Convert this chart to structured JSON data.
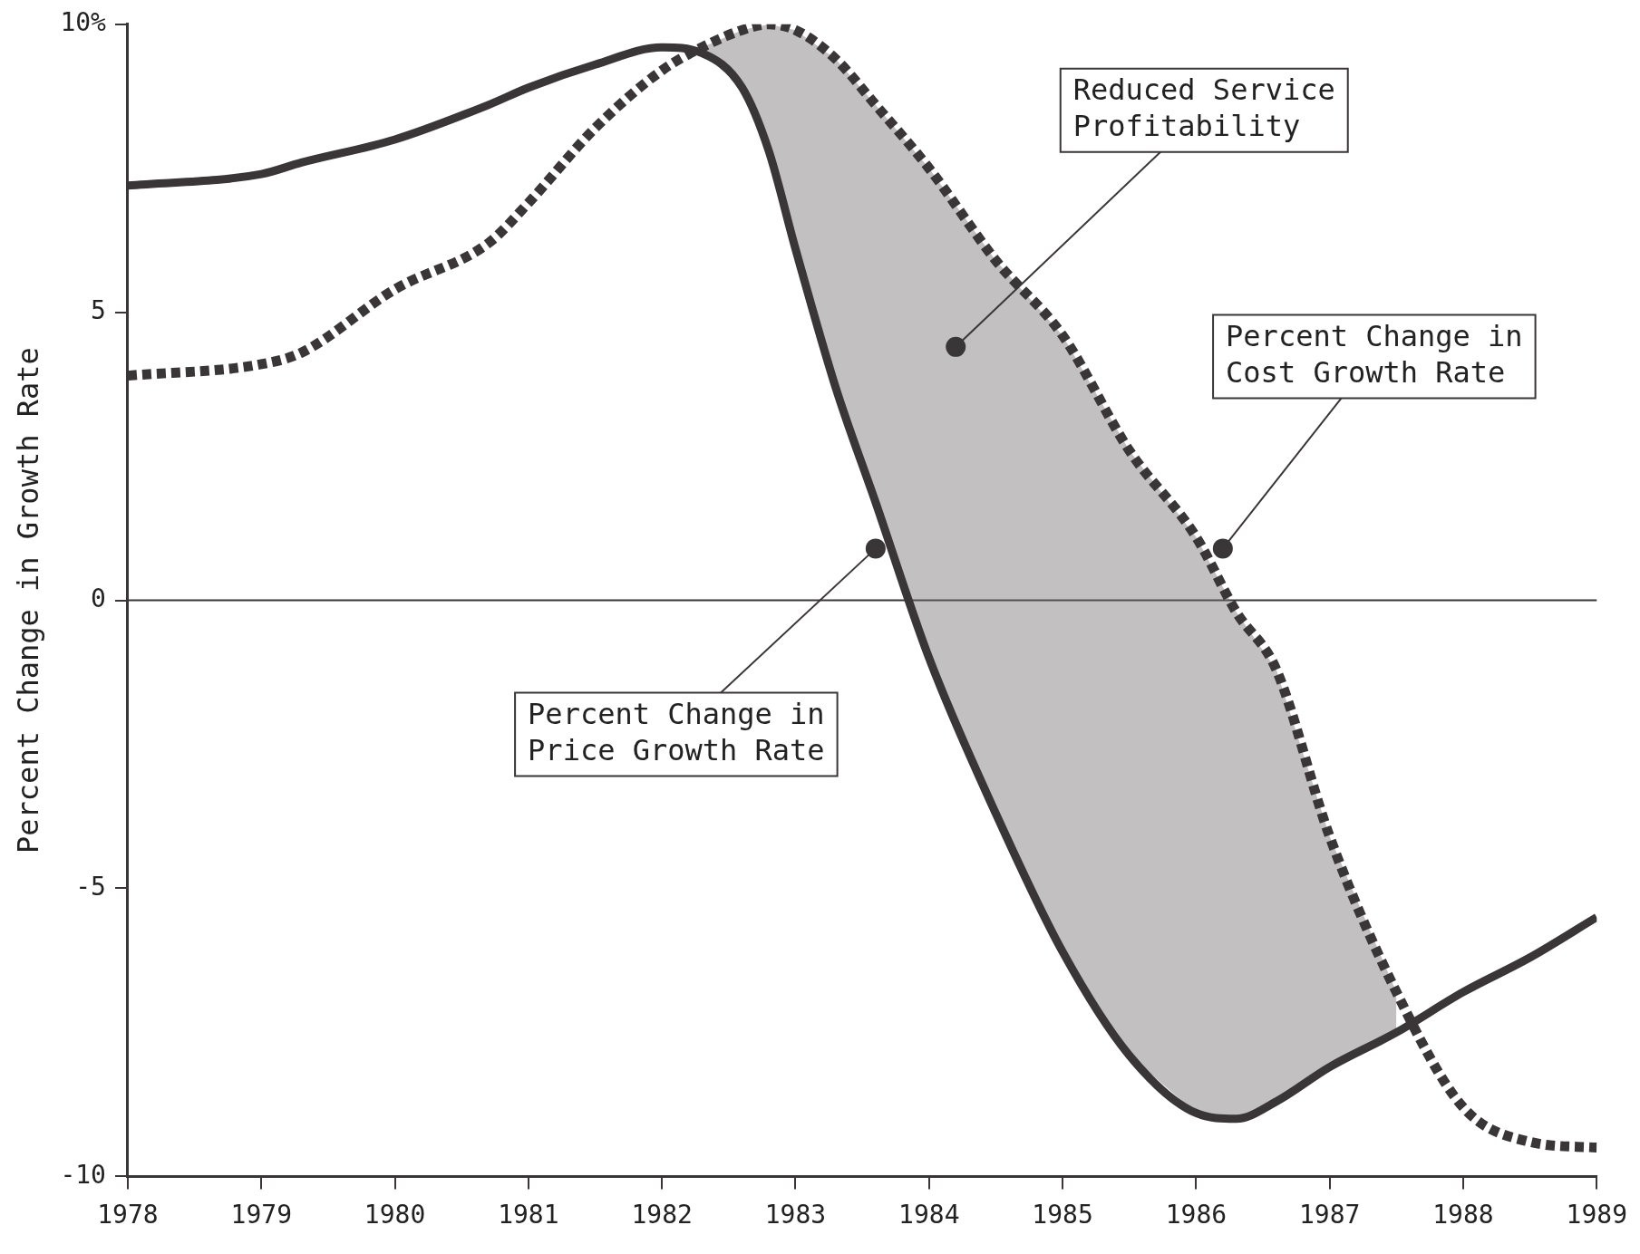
{
  "chart_data": {
    "type": "line",
    "ylabel": "Percent Change in Growth Rate",
    "x": [
      1978,
      1979,
      1979.3,
      1980,
      1980.7,
      1981,
      1981.5,
      1982,
      1982.3,
      1982.6,
      1982.8,
      1983,
      1983.3,
      1983.6,
      1984,
      1984.5,
      1985,
      1985.5,
      1986,
      1986.3,
      1986.6,
      1987,
      1987.5,
      1988,
      1988.5,
      1989
    ],
    "series": [
      {
        "color": "#3a3536",
        "line_style": "solid",
        "values": [
          7.2,
          7.4,
          7.6,
          8.0,
          8.6,
          8.9,
          9.3,
          9.6,
          9.5,
          8.9,
          7.8,
          6.1,
          3.7,
          1.7,
          -1.0,
          -3.7,
          -6.1,
          -7.9,
          -8.9,
          -9.0,
          -8.7,
          -8.1,
          -7.5,
          -6.8,
          -6.2,
          -5.5
        ]
      },
      {
        "color": "#3a3536",
        "line_style": "dotted",
        "values": [
          3.9,
          4.1,
          4.3,
          5.4,
          6.2,
          6.9,
          8.2,
          9.2,
          9.6,
          9.9,
          10.0,
          9.9,
          9.4,
          8.6,
          7.5,
          5.9,
          4.6,
          2.6,
          1.1,
          -0.2,
          -1.2,
          -4.1,
          -6.8,
          -8.8,
          -9.4,
          -9.5
        ],
        "lower": [
          null,
          null,
          null,
          null,
          null,
          null,
          null,
          null,
          9.5,
          8.9,
          7.8,
          6.1,
          3.7,
          1.7,
          -1.0,
          -3.7,
          -6.1,
          -7.9,
          -8.9,
          -9.0,
          -8.7,
          -8.1,
          -7.5,
          null,
          null,
          null
        ],
        "upper": [
          null,
          null,
          null,
          null,
          null,
          null,
          null,
          null,
          9.6,
          9.9,
          10.0,
          9.9,
          9.4,
          8.6,
          7.5,
          5.9,
          4.6,
          2.6,
          1.1,
          -0.2,
          -1.2,
          -4.1,
          -6.8,
          null,
          null,
          null
        ]
      }
    ],
    "xlim": [
      1978,
      1989
    ],
    "xticks": [
      1978,
      1979,
      1980,
      1981,
      1982,
      1983,
      1984,
      1985,
      1986,
      1987,
      1988,
      1989
    ],
    "ylim": [
      -10,
      10
    ],
    "yticks": [
      -10,
      -5,
      0,
      5,
      {
        "value": 10,
        "label": "10%"
      }
    ],
    "ref_lines": [
      {
        "axis": "y",
        "value": 0,
        "color": "#3a3536"
      }
    ],
    "annotations": [
      {
        "text": "Reduced Service\nProfitability",
        "x": 1984.2,
        "y": 4.4
      },
      {
        "text": "Percent Change in\nPrice Growth Rate",
        "x": 1983.6,
        "y": 0.9
      },
      {
        "text": "Percent Change in\nCost Growth Rate",
        "x": 1986.2,
        "y": 0.9
      }
    ],
    "grid": false,
    "legend": false,
    "marker": "none"
  }
}
